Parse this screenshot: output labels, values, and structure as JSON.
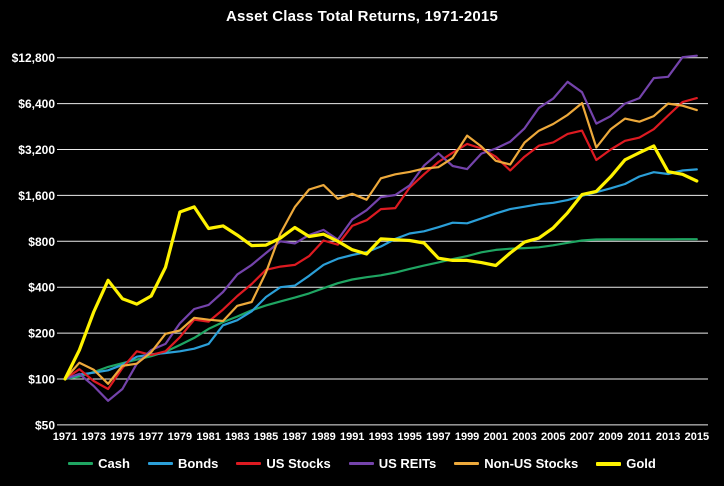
{
  "page": {
    "title": "Asset Class Total Returns, 1971-2015"
  },
  "chart_data": {
    "type": "line",
    "title": "Asset Class Total Returns, 1971-2015",
    "y_scale": "log2",
    "grid": true,
    "legend_position": "bottom",
    "background_color": "#000000",
    "text_color": "#ffffff",
    "gridline_color": "#ffffff",
    "ylim": [
      50,
      12800
    ],
    "y_ticks": [
      12800,
      6400,
      3200,
      1600,
      800,
      400,
      200,
      100,
      50
    ],
    "y_tick_labels": [
      "$12,800",
      "$6,400",
      "$3,200",
      "$1,600",
      "$800",
      "$400",
      "$200",
      "$100",
      "$50"
    ],
    "x_tick_labels": [
      "1971",
      "1973",
      "1975",
      "1977",
      "1979",
      "1981",
      "1983",
      "1985",
      "1987",
      "1989",
      "1991",
      "1993",
      "1995",
      "1997",
      "1999",
      "2001",
      "2003",
      "2005",
      "2007",
      "2009",
      "2011",
      "2013",
      "2015"
    ],
    "years": [
      1971,
      1972,
      1973,
      1974,
      1975,
      1976,
      1977,
      1978,
      1979,
      1980,
      1981,
      1982,
      1983,
      1984,
      1985,
      1986,
      1987,
      1988,
      1989,
      1990,
      1991,
      1992,
      1993,
      1994,
      1995,
      1996,
      1997,
      1998,
      1999,
      2000,
      2001,
      2002,
      2003,
      2004,
      2005,
      2006,
      2007,
      2008,
      2009,
      2010,
      2011,
      2012,
      2013,
      2014,
      2015
    ],
    "series": [
      {
        "name": "Cash",
        "color": "#1fa562",
        "line_width": 2.2,
        "values": [
          100,
          104,
          111,
          120,
          127,
          134,
          141,
          151,
          167,
          186,
          213,
          236,
          257,
          282,
          304,
          323,
          342,
          364,
          394,
          425,
          449,
          465,
          479,
          499,
          527,
          554,
          582,
          611,
          640,
          678,
          703,
          715,
          722,
          731,
          753,
          782,
          810,
          822,
          823,
          824,
          824,
          825,
          825,
          826,
          826
        ]
      },
      {
        "name": "Bonds",
        "color": "#2b9fd8",
        "line_width": 2.2,
        "values": [
          100,
          107,
          110,
          114,
          124,
          140,
          145,
          148,
          152,
          158,
          170,
          225,
          243,
          278,
          345,
          400,
          410,
          475,
          560,
          615,
          650,
          680,
          740,
          830,
          900,
          930,
          990,
          1060,
          1050,
          1130,
          1220,
          1300,
          1350,
          1400,
          1430,
          1490,
          1590,
          1680,
          1780,
          1900,
          2130,
          2270,
          2210,
          2330,
          2370
        ]
      },
      {
        "name": "US Stocks",
        "color": "#dd1a21",
        "line_width": 2.2,
        "values": [
          100,
          116,
          97,
          86,
          118,
          152,
          144,
          152,
          188,
          245,
          238,
          285,
          350,
          420,
          520,
          546,
          560,
          640,
          810,
          760,
          1010,
          1100,
          1300,
          1320,
          1800,
          2200,
          2650,
          3050,
          3480,
          3250,
          2870,
          2330,
          2870,
          3390,
          3560,
          4050,
          4260,
          2730,
          3200,
          3650,
          3830,
          4350,
          5350,
          6550,
          6950
        ]
      },
      {
        "name": "US REITs",
        "color": "#7443ab",
        "line_width": 2.2,
        "values": [
          100,
          108,
          90,
          72,
          86,
          126,
          155,
          170,
          232,
          288,
          306,
          372,
          485,
          560,
          670,
          800,
          775,
          880,
          950,
          820,
          1110,
          1280,
          1560,
          1610,
          1860,
          2510,
          3020,
          2495,
          2380,
          3010,
          3250,
          3600,
          4400,
          6000,
          6900,
          8900,
          7600,
          4730,
          5300,
          6400,
          6950,
          9400,
          9600,
          12900,
          13200
        ]
      },
      {
        "name": "Non-US Stocks",
        "color": "#eda93b",
        "line_width": 2.2,
        "values": [
          100,
          128,
          115,
          93,
          122,
          126,
          150,
          198,
          208,
          252,
          245,
          240,
          302,
          320,
          500,
          900,
          1340,
          1750,
          1870,
          1520,
          1640,
          1500,
          2070,
          2200,
          2280,
          2400,
          2450,
          2820,
          3950,
          3350,
          2700,
          2550,
          3550,
          4250,
          4700,
          5400,
          6450,
          3300,
          4350,
          5100,
          4870,
          5300,
          6400,
          6200,
          5800
        ]
      },
      {
        "name": "Gold",
        "color": "#fef200",
        "line_width": 3.2,
        "values": [
          100,
          155,
          275,
          444,
          336,
          310,
          350,
          540,
          1245,
          1345,
          970,
          1010,
          878,
          750,
          755,
          840,
          985,
          860,
          890,
          800,
          705,
          660,
          830,
          820,
          810,
          780,
          620,
          600,
          600,
          580,
          555,
          670,
          790,
          840,
          980,
          1230,
          1620,
          1700,
          2120,
          2740,
          3050,
          3380,
          2290,
          2200,
          1990
        ]
      }
    ]
  }
}
